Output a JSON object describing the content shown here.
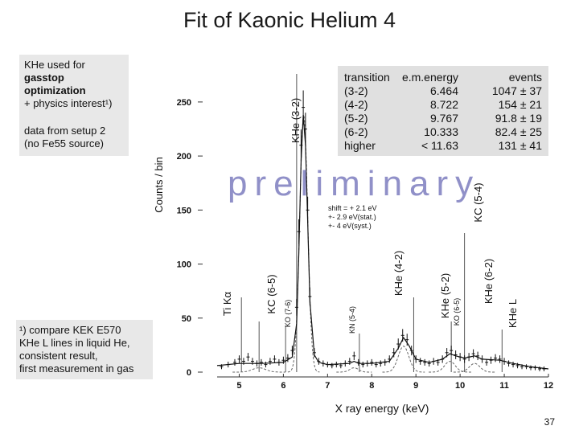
{
  "title": "Fit of Kaonic Helium 4",
  "notes": {
    "used_line1": "KHe used  for",
    "used_line2": "gasstop",
    "used_line3": "optimization",
    "used_line4": "+ physics interest¹)",
    "setup_line1": "data from setup 2",
    "setup_line2": "(no Fe55 source)"
  },
  "footnote": {
    "line1": "¹)  compare KEK E570",
    "line2": "KHe L lines in liquid He,",
    "line3": "consistent result,",
    "line4": "first measurement in gas"
  },
  "watermark": "preliminary",
  "shift_note": {
    "line1": "shift = + 2.1 eV",
    "line2": "+- 2.9 eV(stat.)",
    "line3": "+- 4 eV(syst.)"
  },
  "table": {
    "headers": [
      "transition",
      "e.m.energy",
      "events"
    ],
    "rows": [
      [
        "(3-2)",
        "6.464",
        "1047 ± 37"
      ],
      [
        "(4-2)",
        "8.722",
        "154 ± 21"
      ],
      [
        "(5-2)",
        "9.767",
        "91.8 ± 19"
      ],
      [
        "(6-2)",
        "10.333",
        "82.4 ± 25"
      ],
      [
        "higher",
        "< 11.63",
        "131 ± 41"
      ]
    ]
  },
  "page_number": "37",
  "chart_data": {
    "type": "scatter",
    "xlabel": "X ray energy (keV)",
    "ylabel": "Counts / bin",
    "xlim": [
      4.5,
      12
    ],
    "ylim": [
      0,
      270
    ],
    "x_ticks": [
      "5",
      "6",
      "7",
      "8",
      "9",
      "10",
      "11",
      "12"
    ],
    "y_ticks": [
      "0",
      "50",
      "100",
      "150",
      "200",
      "250"
    ],
    "peak_labels": [
      {
        "text": "KHe (3-2)",
        "x": 6.45,
        "y": 215
      },
      {
        "text": "Ti Kα",
        "x": 4.51,
        "y": 75
      },
      {
        "text": "KC (6-5)",
        "x": 5.3,
        "y": 65
      },
      {
        "text": "KO (7-6)",
        "x": 5.95,
        "y": 40
      },
      {
        "text": "KN (5-4)",
        "x": 7.6,
        "y": 30
      },
      {
        "text": "KHe (4-2)",
        "x": 8.72,
        "y": 85
      },
      {
        "text": "KHe (5-2)",
        "x": 9.77,
        "y": 55
      },
      {
        "text": "KO (6-5)",
        "x": 9.9,
        "y": 40
      },
      {
        "text": "KHe (6-2)",
        "x": 10.33,
        "y": 85
      },
      {
        "text": "KC (5-4)",
        "x": 10.2,
        "y": 165
      },
      {
        "text": "KHe L",
        "x": 10.95,
        "y": 45
      }
    ],
    "points": [
      [
        4.6,
        5
      ],
      [
        4.75,
        7
      ],
      [
        4.9,
        9
      ],
      [
        5.0,
        12
      ],
      [
        5.1,
        10
      ],
      [
        5.2,
        14
      ],
      [
        5.3,
        10
      ],
      [
        5.4,
        8
      ],
      [
        5.5,
        9
      ],
      [
        5.6,
        7
      ],
      [
        5.7,
        10
      ],
      [
        5.8,
        12
      ],
      [
        5.9,
        9
      ],
      [
        6.0,
        11
      ],
      [
        6.1,
        13
      ],
      [
        6.2,
        20
      ],
      [
        6.3,
        60
      ],
      [
        6.35,
        130
      ],
      [
        6.4,
        210
      ],
      [
        6.45,
        245
      ],
      [
        6.5,
        225
      ],
      [
        6.55,
        150
      ],
      [
        6.6,
        70
      ],
      [
        6.7,
        18
      ],
      [
        6.8,
        10
      ],
      [
        6.9,
        8
      ],
      [
        7.0,
        7
      ],
      [
        7.1,
        6
      ],
      [
        7.2,
        7
      ],
      [
        7.3,
        6
      ],
      [
        7.4,
        8
      ],
      [
        7.5,
        10
      ],
      [
        7.6,
        15
      ],
      [
        7.7,
        9
      ],
      [
        7.8,
        7
      ],
      [
        7.9,
        8
      ],
      [
        8.0,
        9
      ],
      [
        8.1,
        7
      ],
      [
        8.2,
        8
      ],
      [
        8.3,
        9
      ],
      [
        8.4,
        12
      ],
      [
        8.5,
        18
      ],
      [
        8.6,
        26
      ],
      [
        8.7,
        34
      ],
      [
        8.8,
        30
      ],
      [
        8.9,
        20
      ],
      [
        9.0,
        12
      ],
      [
        9.1,
        10
      ],
      [
        9.2,
        9
      ],
      [
        9.3,
        8
      ],
      [
        9.4,
        10
      ],
      [
        9.5,
        9
      ],
      [
        9.6,
        12
      ],
      [
        9.7,
        18
      ],
      [
        9.8,
        20
      ],
      [
        9.9,
        16
      ],
      [
        10.0,
        14
      ],
      [
        10.1,
        12
      ],
      [
        10.2,
        14
      ],
      [
        10.3,
        17
      ],
      [
        10.4,
        15
      ],
      [
        10.5,
        12
      ],
      [
        10.6,
        9
      ],
      [
        10.7,
        11
      ],
      [
        10.8,
        13
      ],
      [
        10.9,
        12
      ],
      [
        11.0,
        10
      ],
      [
        11.1,
        8
      ],
      [
        11.2,
        7
      ],
      [
        11.3,
        6
      ],
      [
        11.4,
        5
      ],
      [
        11.5,
        5
      ],
      [
        11.6,
        4
      ],
      [
        11.7,
        4
      ],
      [
        11.8,
        3
      ],
      [
        11.9,
        3
      ]
    ],
    "fit": [
      [
        4.5,
        6
      ],
      [
        5.0,
        8
      ],
      [
        5.5,
        8
      ],
      [
        6.0,
        9
      ],
      [
        6.2,
        14
      ],
      [
        6.3,
        45
      ],
      [
        6.35,
        110
      ],
      [
        6.4,
        195
      ],
      [
        6.45,
        238
      ],
      [
        6.5,
        210
      ],
      [
        6.55,
        140
      ],
      [
        6.6,
        65
      ],
      [
        6.7,
        16
      ],
      [
        6.8,
        9
      ],
      [
        7.0,
        7
      ],
      [
        7.5,
        8
      ],
      [
        7.6,
        10
      ],
      [
        7.7,
        8
      ],
      [
        8.0,
        8
      ],
      [
        8.4,
        10
      ],
      [
        8.6,
        22
      ],
      [
        8.72,
        32
      ],
      [
        8.85,
        24
      ],
      [
        9.0,
        12
      ],
      [
        9.3,
        9
      ],
      [
        9.6,
        12
      ],
      [
        9.77,
        17
      ],
      [
        9.9,
        15
      ],
      [
        10.1,
        13
      ],
      [
        10.33,
        15
      ],
      [
        10.5,
        12
      ],
      [
        10.9,
        11
      ],
      [
        11.2,
        8
      ],
      [
        11.6,
        5
      ],
      [
        12.0,
        3
      ]
    ]
  }
}
